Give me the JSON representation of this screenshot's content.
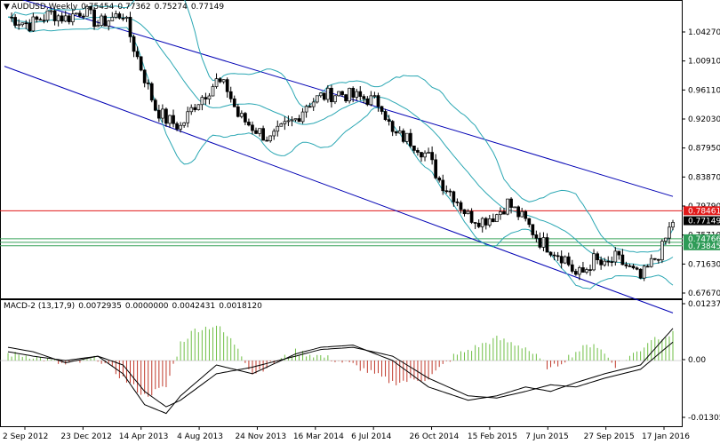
{
  "header": {
    "symbol": "AUDUSD,Weekly",
    "open": "0.75454",
    "high": "0.77362",
    "low": "0.75274",
    "close": "0.77149"
  },
  "macd_header": {
    "name": "MACD-2 (13,17,9)",
    "v1": "0.0072935",
    "v2": "0.0000000",
    "v3": "0.0042431",
    "v4": "0.0018120"
  },
  "colors": {
    "background": "#ffffff",
    "candle_up": "#e8e8e8",
    "candle_down": "#000000",
    "bollinger": "#2aa7b3",
    "channel": "#0000b4",
    "resistance": "#e11a1a",
    "support": "#38a35a",
    "histogram_up": "#6fbf45",
    "histogram_down": "#c0392b",
    "macd_line": "#000000",
    "price_label": "#000000",
    "resistance_label": "#e11a1a",
    "support_label": "#2e9b57"
  },
  "chart_data": [
    {
      "type": "candlestick",
      "title": "AUDUSD,Weekly",
      "y_ticks": [
        "1.04270",
        "1.00910",
        "0.96110",
        "0.92030",
        "0.87950",
        "0.83870",
        "0.79790",
        "0.75710",
        "0.71630",
        "0.67670"
      ],
      "x_ticks": [
        "2 Sep 2012",
        "23 Dec 2012",
        "14 Apr 2013",
        "4 Aug 2013",
        "24 Nov 2013",
        "16 Mar 2014",
        "6 Jul 2014",
        "26 Oct 2014",
        "15 Feb 2015",
        "7 Jun 2015",
        "27 Sep 2015",
        "17 Jan 2016"
      ],
      "ylim": [
        0.6715,
        1.06
      ],
      "price_labels": [
        {
          "text": "0.78461",
          "value": 0.78461,
          "kind": "resistance"
        },
        {
          "text": "0.77149",
          "value": 0.77149,
          "kind": "current"
        },
        {
          "text": "0.74766",
          "value": 0.74766,
          "kind": "support"
        },
        {
          "text": "0.73845",
          "value": 0.73845,
          "kind": "support"
        }
      ],
      "horizontal_lines": [
        {
          "value": 0.78461,
          "kind": "resistance"
        },
        {
          "value": 0.74766,
          "kind": "support"
        },
        {
          "value": 0.743,
          "kind": "support"
        },
        {
          "value": 0.73845,
          "kind": "support"
        }
      ],
      "channel_lines": [
        {
          "from": [
            "2012-08-26",
            1.07
          ],
          "to": [
            "2016-03-20",
            0.8035
          ]
        },
        {
          "from": [
            "2012-08-26",
            0.975
          ],
          "to": [
            "2016-03-20",
            0.65
          ]
        }
      ],
      "close_path": [
        [
          "2012-09-02",
          1.04
        ],
        [
          "2012-10-14",
          1.03
        ],
        [
          "2012-11-25",
          1.045
        ],
        [
          "2012-12-23",
          1.038
        ],
        [
          "2013-01-27",
          1.05
        ],
        [
          "2013-02-24",
          1.03
        ],
        [
          "2013-04-14",
          1.045
        ],
        [
          "2013-05-05",
          1.0
        ],
        [
          "2013-05-26",
          0.96
        ],
        [
          "2013-06-16",
          0.92
        ],
        [
          "2013-07-07",
          0.905
        ],
        [
          "2013-08-04",
          0.895
        ],
        [
          "2013-09-01",
          0.925
        ],
        [
          "2013-10-13",
          0.955
        ],
        [
          "2013-11-03",
          0.945
        ],
        [
          "2013-11-24",
          0.91
        ],
        [
          "2013-12-22",
          0.895
        ],
        [
          "2014-01-26",
          0.878
        ],
        [
          "2014-02-23",
          0.895
        ],
        [
          "2014-03-16",
          0.905
        ],
        [
          "2014-04-06",
          0.925
        ],
        [
          "2014-05-04",
          0.935
        ],
        [
          "2014-06-08",
          0.94
        ],
        [
          "2014-07-06",
          0.935
        ],
        [
          "2014-08-03",
          0.932
        ],
        [
          "2014-08-31",
          0.925
        ],
        [
          "2014-09-21",
          0.885
        ],
        [
          "2014-10-19",
          0.88
        ],
        [
          "2014-11-09",
          0.87
        ],
        [
          "2014-11-30",
          0.855
        ],
        [
          "2014-12-21",
          0.825
        ],
        [
          "2015-01-18",
          0.805
        ],
        [
          "2015-02-15",
          0.778
        ],
        [
          "2015-03-15",
          0.772
        ],
        [
          "2015-04-12",
          0.78
        ],
        [
          "2015-05-03",
          0.795
        ],
        [
          "2015-06-07",
          0.77
        ],
        [
          "2015-07-05",
          0.745
        ],
        [
          "2015-07-26",
          0.735
        ],
        [
          "2015-08-23",
          0.722
        ],
        [
          "2015-09-13",
          0.7
        ],
        [
          "2015-09-27",
          0.703
        ],
        [
          "2015-10-18",
          0.72
        ],
        [
          "2015-11-08",
          0.71
        ],
        [
          "2015-11-29",
          0.722
        ],
        [
          "2015-12-20",
          0.712
        ],
        [
          "2016-01-17",
          0.695
        ],
        [
          "2016-02-07",
          0.715
        ],
        [
          "2016-02-28",
          0.735
        ],
        [
          "2016-03-13",
          0.76
        ],
        [
          "2016-03-20",
          0.7715
        ]
      ]
    },
    {
      "type": "macd",
      "title": "MACD-2 (13,17,9)",
      "y_ticks": [
        "0.012379",
        "0.00",
        "-0.013050"
      ],
      "ylim": [
        -0.0145,
        0.0135
      ],
      "signal_path": [
        [
          "2012-09-02",
          0.003
        ],
        [
          "2012-10-21",
          0.002
        ],
        [
          "2012-12-23",
          -0.0005
        ],
        [
          "2013-02-24",
          0.001
        ],
        [
          "2013-04-14",
          -0.001
        ],
        [
          "2013-05-26",
          -0.007
        ],
        [
          "2013-07-07",
          -0.0105
        ],
        [
          "2013-08-04",
          -0.009
        ],
        [
          "2013-10-13",
          -0.003
        ],
        [
          "2013-12-22",
          -0.0015
        ],
        [
          "2014-03-16",
          0.001
        ],
        [
          "2014-05-04",
          0.0025
        ],
        [
          "2014-07-06",
          0.003
        ],
        [
          "2014-09-21",
          0.001
        ],
        [
          "2014-11-30",
          -0.004
        ],
        [
          "2015-02-15",
          -0.008
        ],
        [
          "2015-04-12",
          -0.0085
        ],
        [
          "2015-06-07",
          -0.007
        ],
        [
          "2015-07-26",
          -0.0055
        ],
        [
          "2015-09-13",
          -0.006
        ],
        [
          "2015-11-08",
          -0.004
        ],
        [
          "2016-01-17",
          -0.002
        ],
        [
          "2016-03-20",
          0.0042
        ]
      ],
      "macd_path": [
        [
          "2012-09-02",
          0.002
        ],
        [
          "2012-10-21",
          0.001
        ],
        [
          "2012-12-23",
          0.0
        ],
        [
          "2013-02-24",
          0.001
        ],
        [
          "2013-04-14",
          -0.003
        ],
        [
          "2013-05-26",
          -0.01
        ],
        [
          "2013-07-07",
          -0.012
        ],
        [
          "2013-08-04",
          -0.008
        ],
        [
          "2013-10-13",
          -0.001
        ],
        [
          "2013-12-22",
          -0.003
        ],
        [
          "2014-03-16",
          0.0015
        ],
        [
          "2014-05-04",
          0.003
        ],
        [
          "2014-07-06",
          0.0035
        ],
        [
          "2014-09-21",
          0.0
        ],
        [
          "2014-11-30",
          -0.006
        ],
        [
          "2015-02-15",
          -0.009
        ],
        [
          "2015-04-12",
          -0.008
        ],
        [
          "2015-06-07",
          -0.006
        ],
        [
          "2015-07-26",
          -0.007
        ],
        [
          "2015-09-13",
          -0.005
        ],
        [
          "2015-11-08",
          -0.003
        ],
        [
          "2016-01-17",
          -0.001
        ],
        [
          "2016-03-20",
          0.0073
        ]
      ],
      "histogram": [
        [
          "2012-09-02",
          0.0015
        ],
        [
          "2012-10-21",
          0.001
        ],
        [
          "2012-12-23",
          -0.001
        ],
        [
          "2013-02-24",
          0.0005
        ],
        [
          "2013-04-14",
          -0.004
        ],
        [
          "2013-05-26",
          -0.008
        ],
        [
          "2013-07-07",
          -0.006
        ],
        [
          "2013-08-04",
          0.004
        ],
        [
          "2013-09-01",
          0.007
        ],
        [
          "2013-10-13",
          0.008
        ],
        [
          "2013-11-24",
          0.003
        ],
        [
          "2013-12-22",
          -0.003
        ],
        [
          "2014-03-16",
          0.002
        ],
        [
          "2014-05-04",
          0.001
        ],
        [
          "2014-07-06",
          -0.001
        ],
        [
          "2014-09-21",
          -0.005
        ],
        [
          "2014-11-30",
          -0.004
        ],
        [
          "2015-01-18",
          0.001
        ],
        [
          "2015-04-12",
          0.005
        ],
        [
          "2015-06-07",
          0.003
        ],
        [
          "2015-07-26",
          -0.002
        ],
        [
          "2015-09-13",
          0.002
        ],
        [
          "2015-10-18",
          0.004
        ],
        [
          "2015-11-29",
          -0.001
        ],
        [
          "2016-01-17",
          0.0025
        ],
        [
          "2016-02-07",
          0.005
        ],
        [
          "2016-03-20",
          0.006
        ]
      ]
    }
  ]
}
